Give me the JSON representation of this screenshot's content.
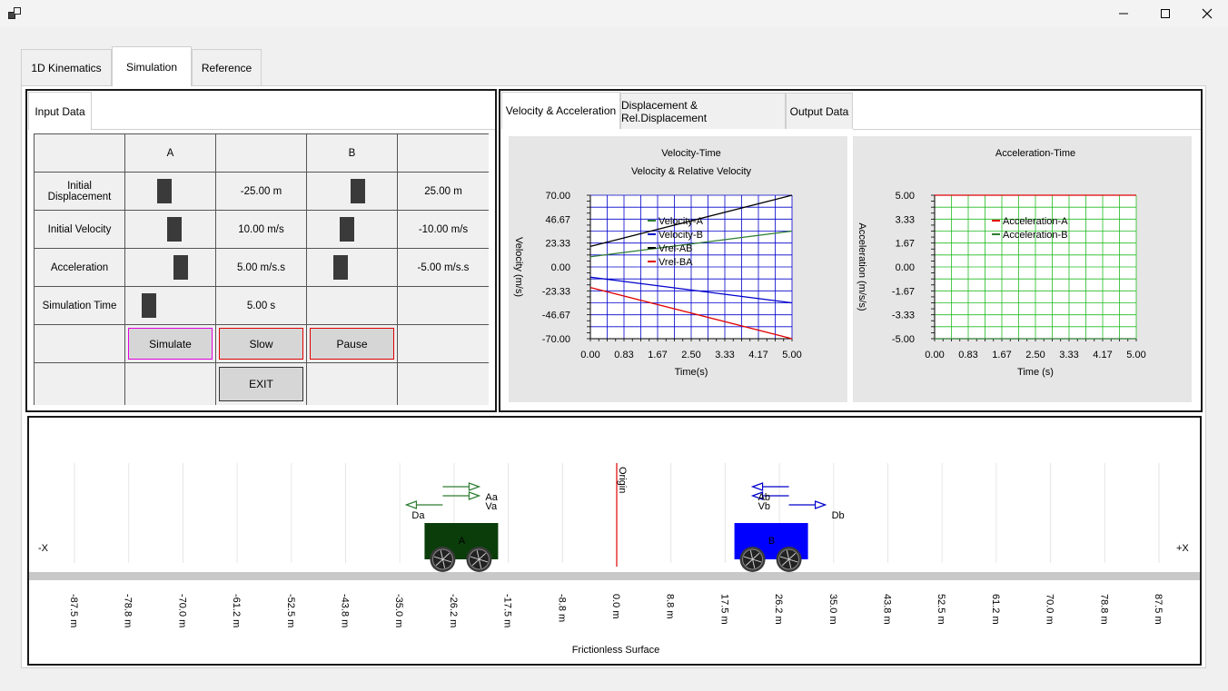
{
  "tabs": [
    "1D Kinematics",
    "Simulation",
    "Reference"
  ],
  "active_tab": "Simulation",
  "input_tab": "Input Data",
  "grid": {
    "col_a": "A",
    "col_b": "B",
    "rows": [
      {
        "label": "Initial Displacement",
        "a_value": "-25.00 m",
        "b_value": "25.00 m"
      },
      {
        "label": "Initial Velocity",
        "a_value": "10.00 m/s",
        "b_value": "-10.00 m/s"
      },
      {
        "label": "Acceleration",
        "a_value": "5.00 m/s.s",
        "b_value": "-5.00 m/s.s"
      },
      {
        "label": "Simulation Time",
        "a_value": "5.00 s",
        "b_value": ""
      }
    ],
    "buttons": {
      "simulate": "Simulate",
      "slow": "Slow",
      "pause": "Pause",
      "exit": "EXIT"
    }
  },
  "output_tabs": [
    "Velocity & Acceleration",
    "Displacement & Rel.Displacement",
    "Output Data"
  ],
  "active_output_tab": "Velocity & Acceleration",
  "chart_data": [
    {
      "type": "line",
      "title": "Velocity-Time",
      "subtitle": "Velocity & Relative Velocity",
      "xlabel": "Time(s)",
      "ylabel": "Velocity (m/s)",
      "xlim": [
        0,
        5
      ],
      "ylim": [
        -70,
        70
      ],
      "x_ticks": [
        "0.00",
        "0.83",
        "1.67",
        "2.50",
        "3.33",
        "4.17",
        "5.00"
      ],
      "y_ticks": [
        "70.00",
        "46.67",
        "23.33",
        "0.00",
        "-23.33",
        "-46.67",
        "-70.00"
      ],
      "grid_color": "#0000cc",
      "legend": "top-left",
      "series": [
        {
          "name": "Velocity-A",
          "color": "#2e7d32",
          "x": [
            0,
            5
          ],
          "y": [
            10,
            35
          ]
        },
        {
          "name": "Velocity-B",
          "color": "#0000cc",
          "x": [
            0,
            5
          ],
          "y": [
            -10,
            -35
          ]
        },
        {
          "name": "Vrel-AB",
          "color": "#000000",
          "x": [
            0,
            5
          ],
          "y": [
            20,
            70
          ]
        },
        {
          "name": "Vrel-BA",
          "color": "#e00000",
          "x": [
            0,
            5
          ],
          "y": [
            -20,
            -70
          ]
        }
      ]
    },
    {
      "type": "line",
      "title": "Acceleration-Time",
      "subtitle": "",
      "xlabel": "Time (s)",
      "ylabel": "Acceleration (m/s/s)",
      "xlim": [
        0,
        5
      ],
      "ylim": [
        -5,
        5
      ],
      "x_ticks": [
        "0.00",
        "0.83",
        "1.67",
        "2.50",
        "3.33",
        "4.17",
        "5.00"
      ],
      "y_ticks": [
        "5.00",
        "3.33",
        "1.67",
        "0.00",
        "-1.67",
        "-3.33",
        "-5.00"
      ],
      "grid_color": "#22bb22",
      "legend": "top-left",
      "series": [
        {
          "name": "Acceleration-A",
          "color": "#e00000",
          "x": [
            0,
            5
          ],
          "y": [
            5,
            5
          ]
        },
        {
          "name": "Acceleration-B",
          "color": "#2e7d32",
          "x": [
            0,
            5
          ],
          "y": [
            -5,
            -5
          ]
        }
      ]
    }
  ],
  "simulation": {
    "neg_label": "-X",
    "pos_label": "+X",
    "origin_label": "Origin",
    "surface_label": "Frictionless Surface",
    "surface_color": "#e00000",
    "ticks": [
      "-87.5 m",
      "-78.8 m",
      "-70.0 m",
      "-61.2 m",
      "-52.5 m",
      "-43.8 m",
      "-35.0 m",
      "-26.2 m",
      "-17.5 m",
      "-8.8 m",
      "0.0 m",
      "8.8 m",
      "17.5 m",
      "26.2 m",
      "35.0 m",
      "43.8 m",
      "52.5 m",
      "61.2 m",
      "70.0 m",
      "78.8 m",
      "87.5 m"
    ],
    "cart_a": {
      "label": "A",
      "color": "#0a3d0a",
      "position_m": -25,
      "accel_label": "Aa",
      "vel_label": "Va",
      "disp_label": "Da"
    },
    "cart_b": {
      "label": "B",
      "color": "#0000ff",
      "position_m": 25,
      "accel_label": "Ab",
      "vel_label": "Vb",
      "disp_label": "Db"
    }
  }
}
